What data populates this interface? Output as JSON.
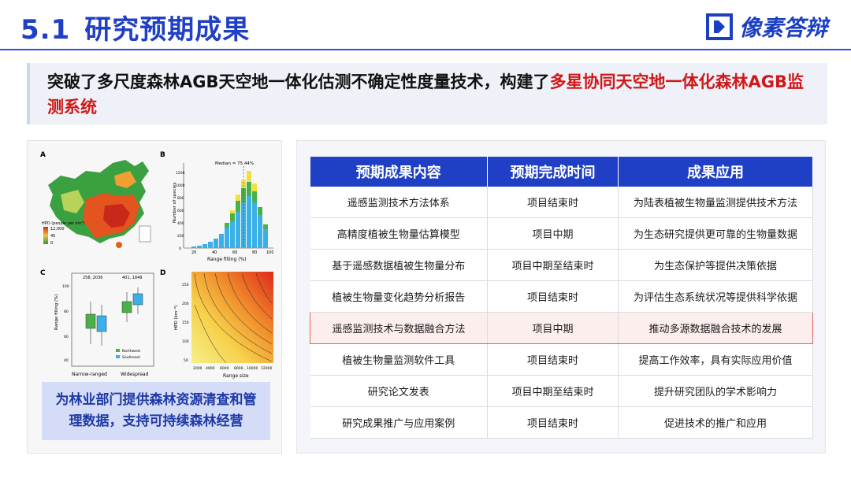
{
  "header": {
    "section_number": "5.1",
    "title": "研究预期成果",
    "brand": "像素答辩",
    "brand_color": "#1a3fc2"
  },
  "banner": {
    "text_normal": "突破了多尺度森林AGB天空地一体化估测不确定性度量技术，构建了",
    "text_highlight": "多星协同天空地一体化森林AGB监测系统",
    "highlight_color": "#d01818"
  },
  "figure": {
    "panel_a": {
      "letter": "A",
      "legend_title": "HPD (people per km²)",
      "legend_values": [
        "12,000",
        "40",
        "0"
      ]
    },
    "panel_b": {
      "letter": "B",
      "annotation": "Median = 75.44%",
      "ylabel": "Number of species",
      "xlabel": "Range filling (%)",
      "xticks": [
        "20",
        "40",
        "60",
        "80",
        "100"
      ],
      "yticks": [
        "0",
        "200",
        "400",
        "600",
        "800",
        "1000",
        "1200"
      ]
    },
    "panel_c": {
      "letter": "C",
      "counts": [
        "258, 2036",
        "401, 1849"
      ],
      "ylabel": "Range filling (%)",
      "yticks": [
        "100",
        "80",
        "60",
        "40"
      ],
      "categories": [
        "Narrow-ranged",
        "Widespread"
      ],
      "legend": [
        "Northwest",
        "Southeast"
      ]
    },
    "panel_d": {
      "letter": "D",
      "ylabel": "HPD (km⁻²)",
      "xlabel": "Range size",
      "xticks": [
        "2000",
        "4000",
        "6000",
        "8000",
        "10000",
        "12000"
      ],
      "yticks": [
        "50",
        "100",
        "150",
        "200",
        "250"
      ]
    }
  },
  "caption": "为林业部门提供森林资源清查和管理数据，支持可持续森林经营",
  "table": {
    "headers": [
      "预期成果内容",
      "预期完成时间",
      "成果应用"
    ],
    "header_color": "#1f40c4",
    "rows": [
      [
        "遥感监测技术方法体系",
        "项目结束时",
        "为陆表植被生物量监测提供技术方法"
      ],
      [
        "高精度植被生物量估算模型",
        "项目中期",
        "为生态研究提供更可靠的生物量数据"
      ],
      [
        "基于遥感数据植被生物量分布",
        "项目中期至结束时",
        "为生态保护等提供决策依据"
      ],
      [
        "植被生物量变化趋势分析报告",
        "项目结束时",
        "为评估生态系统状况等提供科学依据"
      ],
      [
        "遥感监测技术与数据融合方法",
        "项目中期",
        "推动多源数据融合技术的发展"
      ],
      [
        "植被生物量监测软件工具",
        "项目结束时",
        "提高工作效率，具有实际应用价值"
      ],
      [
        "研究论文发表",
        "项目中期至结束时",
        "提升研究团队的学术影响力"
      ],
      [
        "研究成果推广与应用案例",
        "项目结束时",
        "促进技术的推广和应用"
      ]
    ],
    "highlighted_row": 4
  }
}
